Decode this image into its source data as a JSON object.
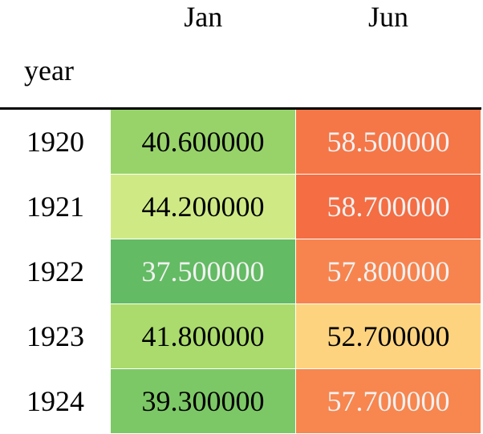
{
  "columns": [
    "Jan",
    "Jun"
  ],
  "index_name": "year",
  "rows": [
    {
      "year": "1920",
      "values": [
        "40.600000",
        "58.500000"
      ],
      "colors": [
        "#98d36a",
        "#f57647"
      ],
      "text": [
        "light",
        "dark"
      ]
    },
    {
      "year": "1921",
      "values": [
        "44.200000",
        "58.700000"
      ],
      "colors": [
        "#cfea85",
        "#f46d43"
      ],
      "text": [
        "light",
        "dark"
      ]
    },
    {
      "year": "1922",
      "values": [
        "37.500000",
        "57.800000"
      ],
      "colors": [
        "#63bb63",
        "#f7844e"
      ],
      "text": [
        "dark",
        "dark"
      ]
    },
    {
      "year": "1923",
      "values": [
        "41.800000",
        "52.700000"
      ],
      "colors": [
        "#aadb6c",
        "#fed380"
      ],
      "text": [
        "light",
        "light"
      ]
    },
    {
      "year": "1924",
      "values": [
        "39.300000",
        "57.700000"
      ],
      "colors": [
        "#7dc866",
        "#f7864f"
      ],
      "text": [
        "light",
        "dark"
      ]
    }
  ]
}
